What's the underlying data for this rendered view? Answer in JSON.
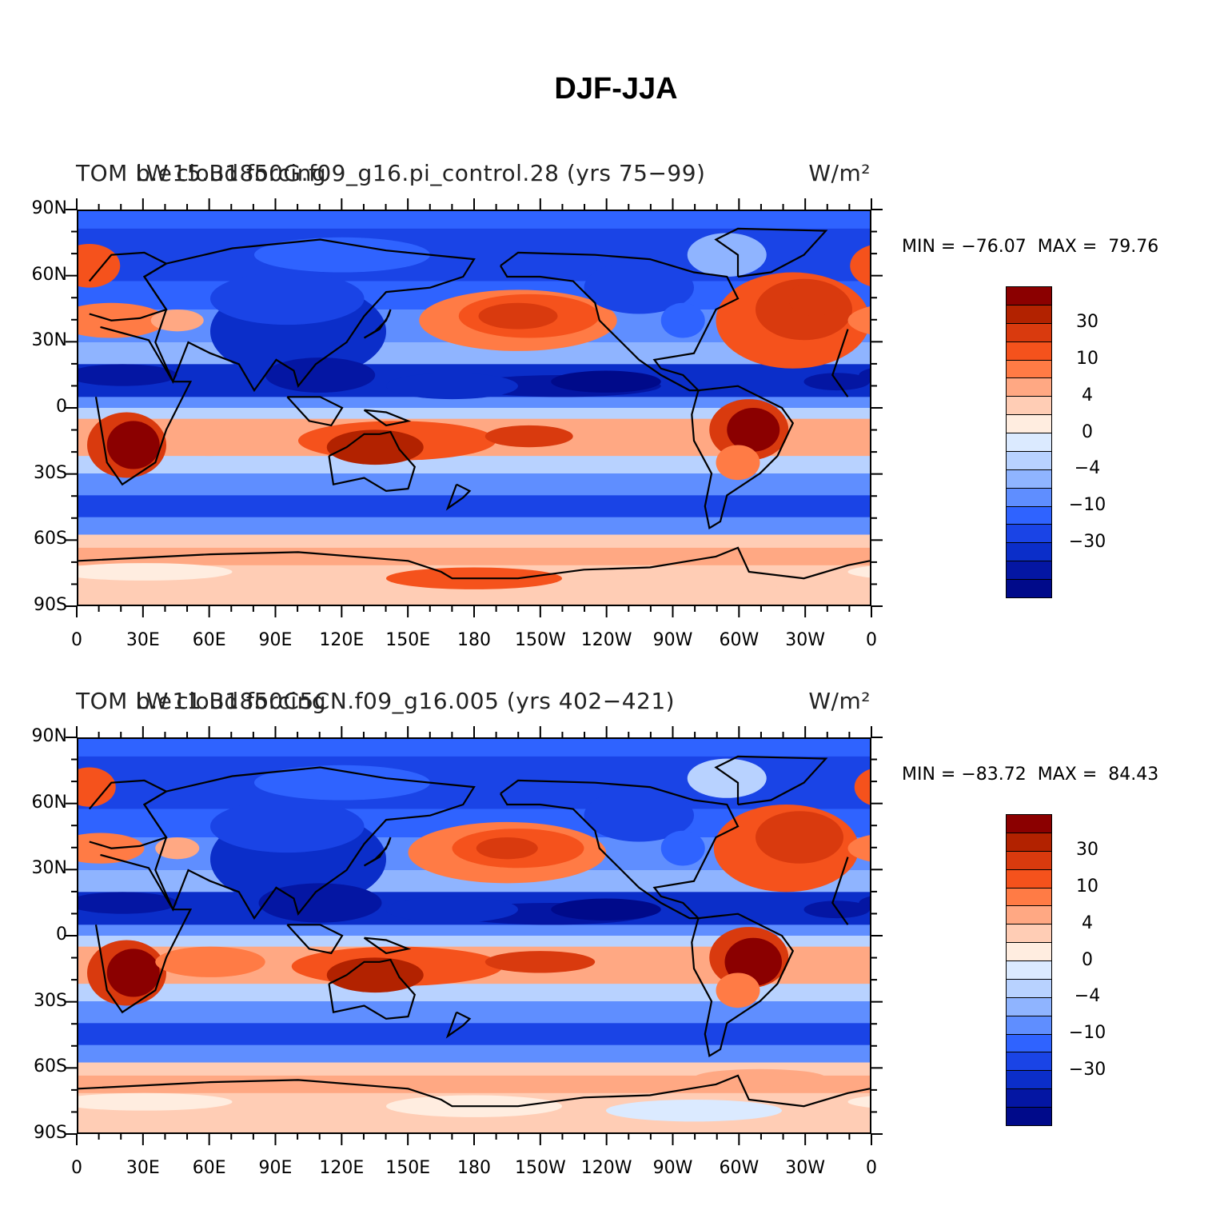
{
  "figure": {
    "title": "DJF-JJA",
    "lat_labels": [
      "90N",
      "60N",
      "30N",
      "0",
      "30S",
      "60S",
      "90S"
    ],
    "lon_labels": [
      "0",
      "30E",
      "60E",
      "90E",
      "120E",
      "150E",
      "180",
      "150W",
      "120W",
      "90W",
      "60W",
      "30W",
      "0"
    ],
    "colorbar": {
      "colors": [
        "#8b0000",
        "#b22200",
        "#d93a0e",
        "#f5521c",
        "#ff7b45",
        "#ffa883",
        "#ffcdb5",
        "#ffede0",
        "#dbeaff",
        "#b8d2ff",
        "#8fb4ff",
        "#5f8eff",
        "#2f63ff",
        "#1a44e6",
        "#0b2ec9",
        "#0416a3",
        "#000a8a"
      ],
      "labels": [
        "30",
        "10",
        "4",
        "0",
        "−4",
        "−10",
        "−30"
      ]
    }
  },
  "panels": [
    {
      "variable_label": "TOM LW cloud forcing",
      "case_label": "b.e15.B1850G.f09_g16.pi_control.28 (yrs 75−99)",
      "units": "W/m²",
      "min_label": "MIN = −76.07",
      "max_label": "MAX =  79.76"
    },
    {
      "variable_label": "TOM LW cloud forcing",
      "case_label": "b.e11.B1850C5CN.f09_g16.005 (yrs 402−421)",
      "units": "W/m²",
      "min_label": "MIN = −83.72",
      "max_label": "MAX =  84.43"
    }
  ]
}
